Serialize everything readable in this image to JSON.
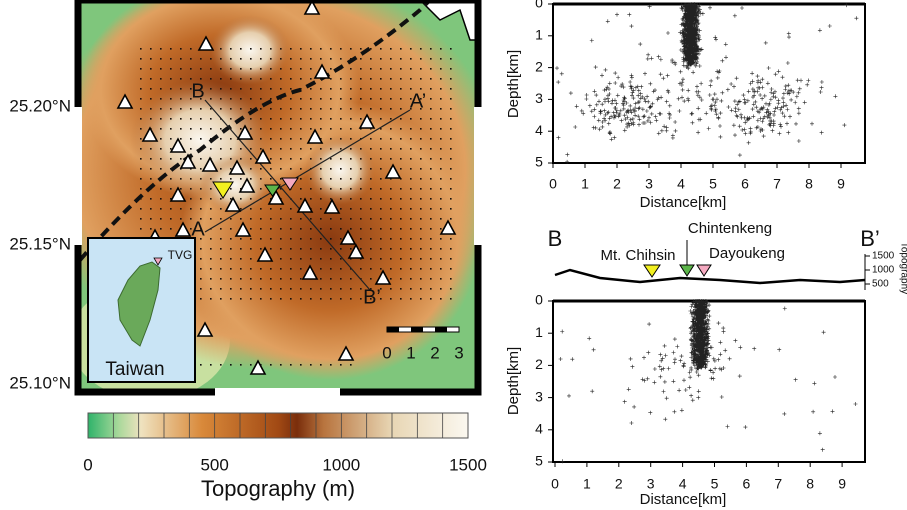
{
  "map": {
    "latitude_labels": [
      "25.20°N",
      "25.15°N",
      "25.10°N"
    ],
    "profile_labels": {
      "a": "A",
      "a_prime": "A’",
      "b": "B",
      "b_prime": "B’"
    },
    "inset": {
      "station": "TVG",
      "name": "Taiwan"
    },
    "scale_labels": [
      "0",
      "1",
      "2",
      "3"
    ]
  },
  "colorbar": {
    "tick_labels": [
      "0",
      "500",
      "1000",
      "1500"
    ],
    "title": "Topography (m)"
  },
  "section_aa": {
    "y_label": "Depth[km]",
    "x_label": "Distance[km]",
    "yticks": [
      "0",
      "1",
      "2",
      "3",
      "4",
      "5"
    ],
    "xticks": [
      "0",
      "1",
      "2",
      "3",
      "4",
      "5",
      "6",
      "7",
      "8",
      "9"
    ]
  },
  "section_bb": {
    "end_labels": [
      "B",
      "B’"
    ],
    "stations": [
      "Mt. Chihsin",
      "Chintenkeng",
      "Dayoukeng"
    ],
    "elevation_ticks": [
      "1500",
      "1000",
      "500"
    ],
    "elevation_label": "Topography",
    "y_label": "Depth[km]",
    "x_label": "Distance[km]",
    "yticks": [
      "0",
      "1",
      "2",
      "3",
      "4",
      "5"
    ],
    "xticks": [
      "0",
      "1",
      "2",
      "3",
      "4",
      "5",
      "6",
      "7",
      "8",
      "9"
    ]
  }
}
